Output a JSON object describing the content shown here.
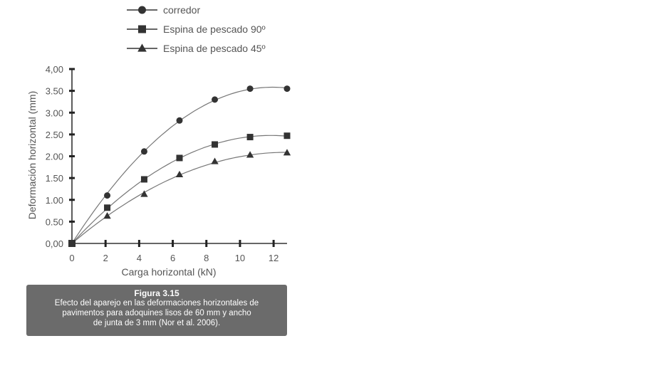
{
  "chart_data": {
    "type": "line",
    "xlabel": "Carga horizontal (kN)",
    "ylabel": "Deformación horizontal (mm)",
    "xlim": [
      0,
      12.8
    ],
    "ylim": [
      0,
      4.0
    ],
    "xticks": [
      "0",
      "2",
      "4",
      "6",
      "8",
      "10",
      "12"
    ],
    "yticks": [
      "0,00",
      "0.50",
      "1.00",
      "1.50",
      "2.00",
      "2.50",
      "3.00",
      "3.50",
      "4,00"
    ],
    "legend_position": "top",
    "series": [
      {
        "name": "corredor",
        "marker": "circle",
        "x": [
          0,
          2.1,
          4.3,
          6.4,
          8.5,
          10.6,
          12.8
        ],
        "y": [
          0,
          1.1,
          2.11,
          2.82,
          3.3,
          3.55,
          3.55
        ]
      },
      {
        "name": "Espina de pescado 90º",
        "marker": "square",
        "x": [
          0,
          2.1,
          4.3,
          6.4,
          8.5,
          10.6,
          12.8
        ],
        "y": [
          0,
          0.82,
          1.47,
          1.96,
          2.27,
          2.44,
          2.47
        ]
      },
      {
        "name": "Espina de pescado 45º",
        "marker": "triangle",
        "x": [
          0,
          2.1,
          4.3,
          6.4,
          8.5,
          10.6,
          12.8
        ],
        "y": [
          0,
          0.63,
          1.13,
          1.58,
          1.88,
          2.03,
          2.08
        ]
      }
    ]
  },
  "caption": {
    "title": "Figura 3.15",
    "line1": "Efecto del aparejo en las deformaciones horizontales de",
    "line2": "pavimentos para adoquines lisos de 60 mm y ancho",
    "line3": "de junta de 3 mm (Nor et al. 2006)."
  }
}
